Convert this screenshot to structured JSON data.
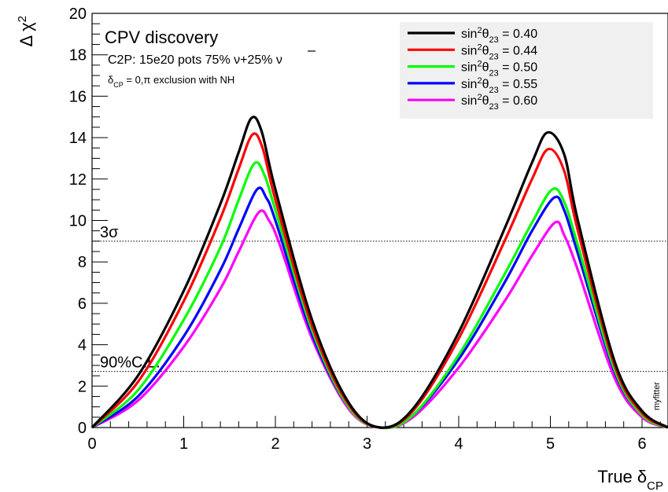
{
  "chart_data": {
    "type": "line",
    "xlabel": {
      "main": "True δ",
      "sub": "CP"
    },
    "ylabel": {
      "main": "Δ χ",
      "sup": "2"
    },
    "xlim": [
      0,
      6.2832
    ],
    "ylim": [
      0,
      20
    ],
    "x_ticks": [
      "0",
      "1",
      "2",
      "3",
      "4",
      "5",
      "6"
    ],
    "y_ticks": [
      "0",
      "2",
      "4",
      "6",
      "8",
      "10",
      "12",
      "14",
      "16",
      "18",
      "20"
    ],
    "grid": false,
    "legend_position": "top-right",
    "annotations": {
      "title": "CPV discovery",
      "config_main": "C2P: 15e20 pots  75% ν+25% ",
      "config_nubar": "ν",
      "exclusion_delta": "δ",
      "exclusion_sub": "CP",
      "exclusion_rest": " = 0,π exclusion with NH",
      "watermark": "myfitter"
    },
    "reference_lines": [
      {
        "label": "3σ",
        "y": 9.0
      },
      {
        "label": "90%C.L.",
        "y": 2.71
      }
    ],
    "series": [
      {
        "name_main": "sin",
        "name_sup": "2",
        "name_theta": "θ",
        "name_sub": "23",
        "name_value": " = 0.40",
        "color": "#000000",
        "x": [
          0,
          0.5,
          1.0,
          1.4,
          1.6,
          1.74,
          1.85,
          2.0,
          2.4,
          2.8,
          3.1416,
          3.5,
          4.0,
          4.5,
          4.8,
          4.97,
          5.15,
          5.3,
          5.7,
          6.0,
          6.2832
        ],
        "y": [
          0,
          2.5,
          6.6,
          10.8,
          13.3,
          14.95,
          14.3,
          11.5,
          5.2,
          1.2,
          0,
          0.9,
          4.6,
          9.6,
          12.8,
          14.25,
          13.2,
          10.0,
          3.2,
          0.8,
          0
        ]
      },
      {
        "name_main": "sin",
        "name_sup": "2",
        "name_theta": "θ",
        "name_sub": "23",
        "name_value": " = 0.44",
        "color": "#ff0000",
        "x": [
          0,
          0.5,
          1.0,
          1.4,
          1.6,
          1.75,
          1.86,
          2.0,
          2.4,
          2.8,
          3.1416,
          3.5,
          4.0,
          4.5,
          4.8,
          4.98,
          5.15,
          5.3,
          5.7,
          6.0,
          6.2832
        ],
        "y": [
          0,
          2.2,
          6.1,
          10.1,
          12.5,
          14.15,
          13.5,
          11.0,
          4.9,
          1.1,
          0,
          0.8,
          4.3,
          9.0,
          12.0,
          13.45,
          12.4,
          9.5,
          3.0,
          0.7,
          0
        ]
      },
      {
        "name_main": "sin",
        "name_sup": "2",
        "name_theta": "θ",
        "name_sub": "23",
        "name_value": " = 0.50",
        "color": "#00ff00",
        "x": [
          0,
          0.5,
          1.0,
          1.4,
          1.6,
          1.77,
          1.88,
          2.0,
          2.4,
          2.8,
          3.1416,
          3.5,
          4.0,
          4.5,
          4.8,
          5.02,
          5.15,
          5.3,
          5.7,
          6.0,
          6.2832
        ],
        "y": [
          0,
          1.8,
          5.2,
          8.7,
          11.0,
          12.75,
          12.2,
          10.5,
          4.7,
          1.0,
          0,
          0.6,
          3.5,
          7.4,
          9.9,
          11.5,
          10.9,
          8.8,
          2.8,
          0.6,
          0
        ]
      },
      {
        "name_main": "sin",
        "name_sup": "2",
        "name_theta": "θ",
        "name_sub": "23",
        "name_value": " = 0.55",
        "color": "#0000ff",
        "x": [
          0,
          0.5,
          1.0,
          1.4,
          1.6,
          1.8,
          1.9,
          2.0,
          2.4,
          2.8,
          3.1416,
          3.5,
          4.0,
          4.5,
          4.8,
          5.04,
          5.15,
          5.3,
          5.7,
          6.0,
          6.2832
        ],
        "y": [
          0,
          1.5,
          4.4,
          7.6,
          9.6,
          11.5,
          11.1,
          10.0,
          4.5,
          1.0,
          0,
          0.6,
          3.3,
          7.0,
          9.5,
          11.1,
          10.5,
          8.4,
          2.7,
          0.6,
          0
        ]
      },
      {
        "name_main": "sin",
        "name_sup": "2",
        "name_theta": "θ",
        "name_sub": "23",
        "name_value": " = 0.60",
        "color": "#ff00ff",
        "x": [
          0,
          0.5,
          1.0,
          1.4,
          1.6,
          1.82,
          1.93,
          2.05,
          2.4,
          2.8,
          3.1416,
          3.5,
          4.0,
          4.5,
          4.8,
          5.05,
          5.15,
          5.3,
          5.7,
          6.0,
          6.2832
        ],
        "y": [
          0,
          1.3,
          3.9,
          6.7,
          8.5,
          10.4,
          10.0,
          8.8,
          4.3,
          0.9,
          0,
          0.5,
          2.9,
          6.1,
          8.3,
          9.9,
          9.3,
          7.6,
          2.4,
          0.5,
          0
        ]
      }
    ]
  }
}
